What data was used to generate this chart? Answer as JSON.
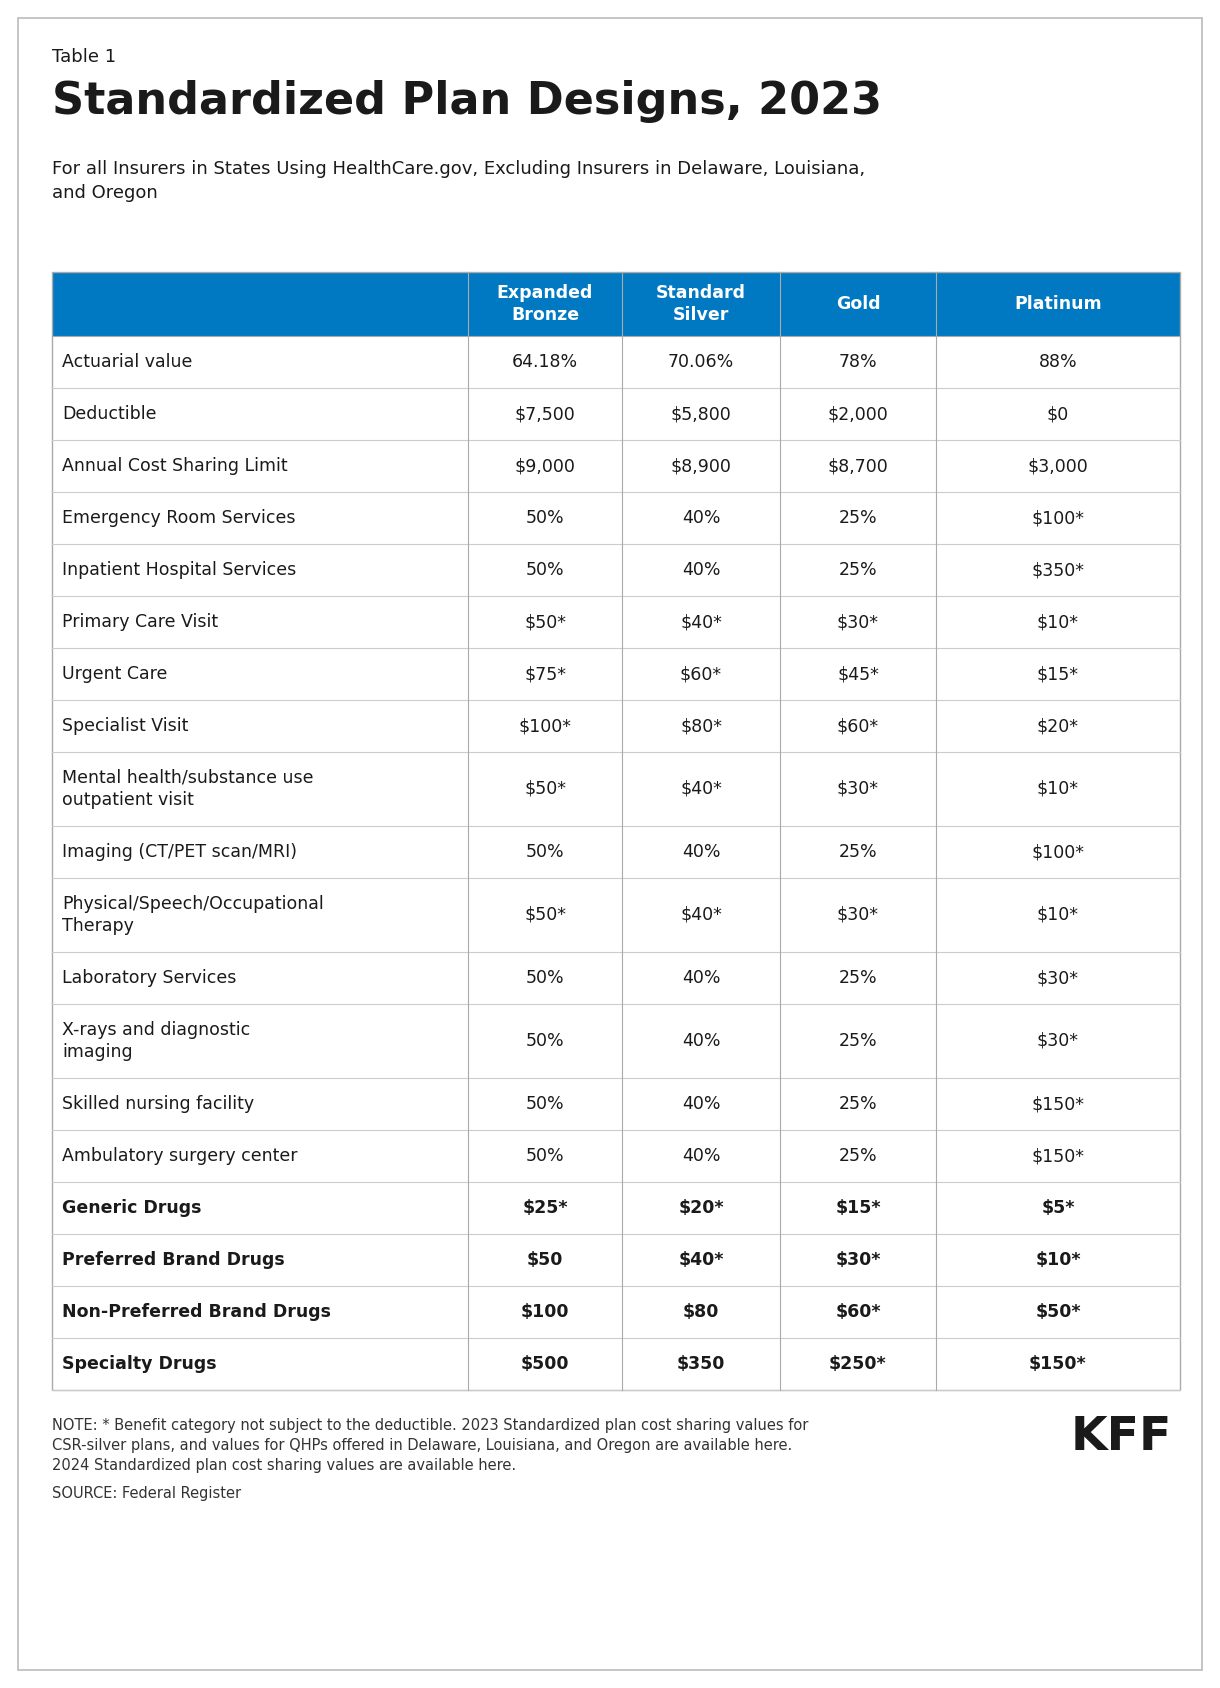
{
  "table_label": "Table 1",
  "title": "Standardized Plan Designs, 2023",
  "subtitle": "For all Insurers in States Using HealthCare.gov, Excluding Insurers in Delaware, Louisiana,\nand Oregon",
  "header_bg": "#0079C2",
  "header_text_color": "#FFFFFF",
  "header_cols": [
    "Expanded\nBronze",
    "Standard\nSilver",
    "Gold",
    "Platinum"
  ],
  "rows": [
    {
      "label": "Actuarial value",
      "bold": false,
      "values": [
        "64.18%",
        "70.06%",
        "78%",
        "88%"
      ]
    },
    {
      "label": "Deductible",
      "bold": false,
      "values": [
        "$7,500",
        "$5,800",
        "$2,000",
        "$0"
      ]
    },
    {
      "label": "Annual Cost Sharing Limit",
      "bold": false,
      "values": [
        "$9,000",
        "$8,900",
        "$8,700",
        "$3,000"
      ]
    },
    {
      "label": "Emergency Room Services",
      "bold": false,
      "values": [
        "50%",
        "40%",
        "25%",
        "$100*"
      ]
    },
    {
      "label": "Inpatient Hospital Services",
      "bold": false,
      "values": [
        "50%",
        "40%",
        "25%",
        "$350*"
      ]
    },
    {
      "label": "Primary Care Visit",
      "bold": false,
      "values": [
        "$50*",
        "$40*",
        "$30*",
        "$10*"
      ]
    },
    {
      "label": "Urgent Care",
      "bold": false,
      "values": [
        "$75*",
        "$60*",
        "$45*",
        "$15*"
      ]
    },
    {
      "label": "Specialist Visit",
      "bold": false,
      "values": [
        "$100*",
        "$80*",
        "$60*",
        "$20*"
      ]
    },
    {
      "label": "Mental health/substance use\noutpatient visit",
      "bold": false,
      "values": [
        "$50*",
        "$40*",
        "$30*",
        "$10*"
      ]
    },
    {
      "label": "Imaging (CT/PET scan/MRI)",
      "bold": false,
      "values": [
        "50%",
        "40%",
        "25%",
        "$100*"
      ]
    },
    {
      "label": "Physical/Speech/Occupational\nTherapy",
      "bold": false,
      "values": [
        "$50*",
        "$40*",
        "$30*",
        "$10*"
      ]
    },
    {
      "label": "Laboratory Services",
      "bold": false,
      "values": [
        "50%",
        "40%",
        "25%",
        "$30*"
      ]
    },
    {
      "label": "X-rays and diagnostic\nimaging",
      "bold": false,
      "values": [
        "50%",
        "40%",
        "25%",
        "$30*"
      ]
    },
    {
      "label": "Skilled nursing facility",
      "bold": false,
      "values": [
        "50%",
        "40%",
        "25%",
        "$150*"
      ]
    },
    {
      "label": "Ambulatory surgery center",
      "bold": false,
      "values": [
        "50%",
        "40%",
        "25%",
        "$150*"
      ]
    },
    {
      "label": "Generic Drugs",
      "bold": true,
      "values": [
        "$25*",
        "$20*",
        "$15*",
        "$5*"
      ]
    },
    {
      "label": "Preferred Brand Drugs",
      "bold": true,
      "values": [
        "$50",
        "$40*",
        "$30*",
        "$10*"
      ]
    },
    {
      "label": "Non-Preferred Brand Drugs",
      "bold": true,
      "values": [
        "$100",
        "$80",
        "$60*",
        "$50*"
      ]
    },
    {
      "label": "Specialty Drugs",
      "bold": true,
      "values": [
        "$500",
        "$350",
        "$250*",
        "$150*"
      ]
    }
  ],
  "note_line1": "NOTE: * Benefit category not subject to the deductible. 2023 Standardized plan cost sharing values for",
  "note_line2": "CSR-silver plans, and values for QHPs offered in Delaware, Louisiana, and Oregon are available here.",
  "note_line3": "2024 Standardized plan cost sharing values are available here.",
  "source": "SOURCE: Federal Register",
  "bg_color": "#FFFFFF",
  "row_line_color": "#CCCCCC",
  "text_color": "#1A1A1A"
}
